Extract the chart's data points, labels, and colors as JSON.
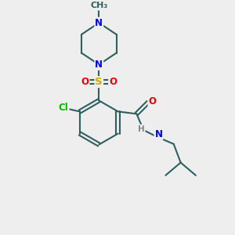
{
  "bg_color": "#eeeeee",
  "bond_color": "#2f6060",
  "bond_width": 1.5,
  "atom_colors": {
    "C": "#2f6060",
    "N": "#0000ee",
    "O": "#ee0000",
    "S": "#ccaa00",
    "Cl": "#00bb00",
    "H": "#888888"
  },
  "font_size": 8.5
}
